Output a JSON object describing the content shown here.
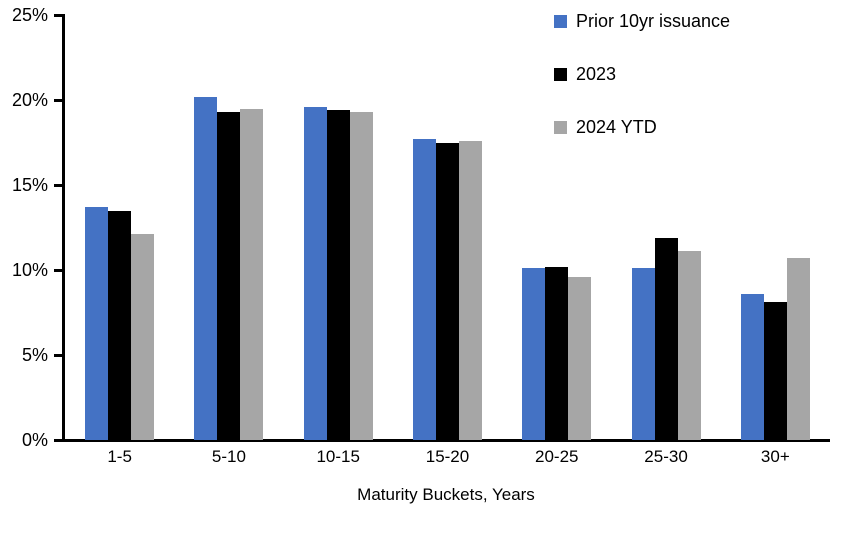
{
  "chart_data": {
    "type": "bar",
    "title": "",
    "xlabel": "Maturity Buckets, Years",
    "ylabel": "",
    "ylim": [
      0,
      25
    ],
    "grid": false,
    "legend_position": "top-right",
    "categories": [
      "1-5",
      "5-10",
      "10-15",
      "15-20",
      "20-25",
      "25-30",
      "30+"
    ],
    "series": [
      {
        "name": "Prior 10yr issuance",
        "color": "#4472C4",
        "values": [
          13.7,
          20.2,
          19.6,
          17.7,
          10.1,
          10.1,
          8.6
        ]
      },
      {
        "name": "2023",
        "color": "#000000",
        "values": [
          13.5,
          19.3,
          19.4,
          17.5,
          10.2,
          11.9,
          8.1
        ]
      },
      {
        "name": "2024 YTD",
        "color": "#A6A6A6",
        "values": [
          12.1,
          19.5,
          19.3,
          17.6,
          9.6,
          11.1,
          10.7
        ]
      }
    ],
    "y_ticks": [
      {
        "value": 0,
        "label": "0%"
      },
      {
        "value": 5,
        "label": "5%"
      },
      {
        "value": 10,
        "label": "10%"
      },
      {
        "value": 15,
        "label": "15%"
      },
      {
        "value": 20,
        "label": "20%"
      },
      {
        "value": 25,
        "label": "25%"
      }
    ]
  }
}
